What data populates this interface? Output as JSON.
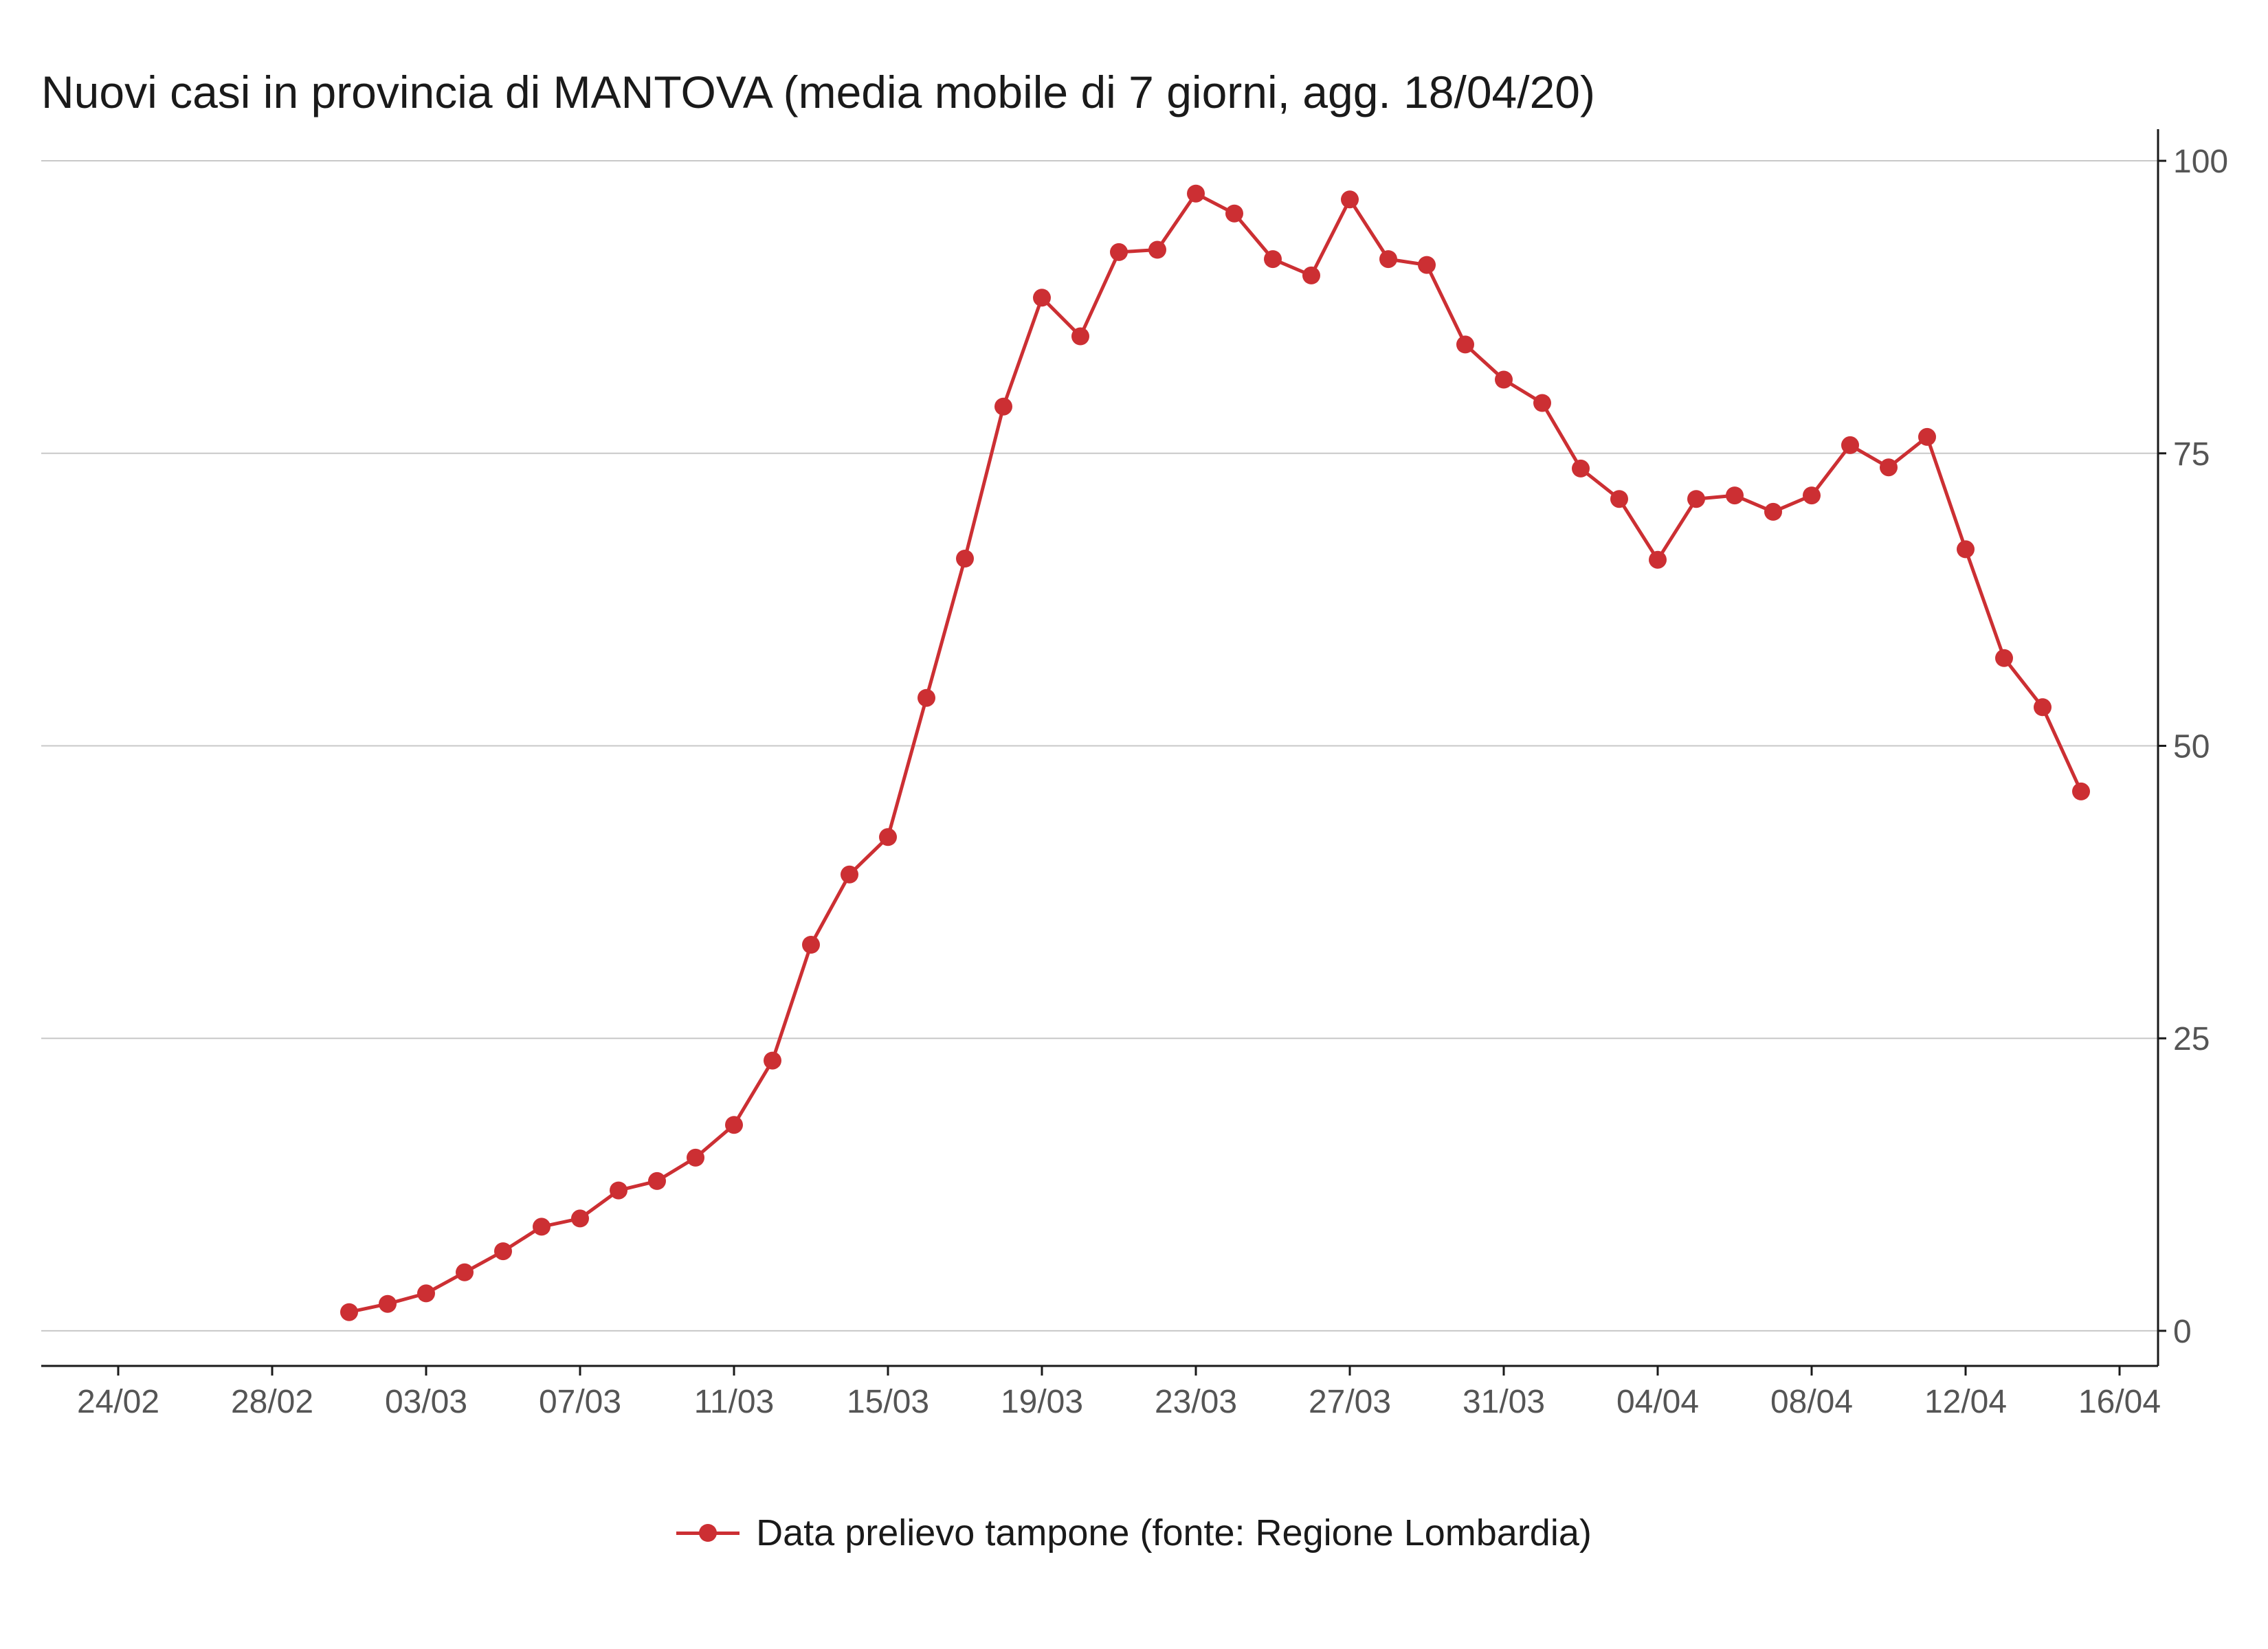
{
  "title": "Nuovi casi in provincia di MANTOVA (media mobile di 7 giorni, agg. 18/04/20)",
  "colors": {
    "series": "#cc2f33",
    "grid": "#c8c8c8",
    "axis": "#1a1a1a",
    "tick_text": "#555555"
  },
  "chart_data": {
    "type": "line",
    "title": "Nuovi casi in provincia di MANTOVA (media mobile di 7 giorni, agg. 18/04/20)",
    "xlabel": "",
    "ylabel": "",
    "x_axis": {
      "type": "date",
      "range": [
        "2020-02-22",
        "2020-04-17"
      ],
      "ticks": [
        "2020-02-24",
        "2020-02-28",
        "2020-03-03",
        "2020-03-07",
        "2020-03-11",
        "2020-03-15",
        "2020-03-19",
        "2020-03-23",
        "2020-03-27",
        "2020-03-31",
        "2020-04-04",
        "2020-04-08",
        "2020-04-12",
        "2020-04-16"
      ],
      "tick_labels": [
        "24/02",
        "28/02",
        "03/03",
        "07/03",
        "11/03",
        "15/03",
        "19/03",
        "23/03",
        "27/03",
        "31/03",
        "04/04",
        "08/04",
        "12/04",
        "16/04"
      ]
    },
    "y_axis": {
      "position": "right",
      "range": [
        -3,
        102
      ],
      "ticks": [
        0,
        25,
        50,
        75,
        100
      ]
    },
    "grid": true,
    "legend_position": "bottom",
    "series": [
      {
        "name": "Data prelievo tampone (fonte: Regione Lombardia)",
        "x": [
          "2020-03-01",
          "2020-03-02",
          "2020-03-03",
          "2020-03-04",
          "2020-03-05",
          "2020-03-06",
          "2020-03-07",
          "2020-03-08",
          "2020-03-09",
          "2020-03-10",
          "2020-03-11",
          "2020-03-12",
          "2020-03-13",
          "2020-03-14",
          "2020-03-15",
          "2020-03-16",
          "2020-03-17",
          "2020-03-18",
          "2020-03-19",
          "2020-03-20",
          "2020-03-21",
          "2020-03-22",
          "2020-03-23",
          "2020-03-24",
          "2020-03-25",
          "2020-03-26",
          "2020-03-27",
          "2020-03-28",
          "2020-03-29",
          "2020-03-30",
          "2020-03-31",
          "2020-04-01",
          "2020-04-02",
          "2020-04-03",
          "2020-04-04",
          "2020-04-05",
          "2020-04-06",
          "2020-04-07",
          "2020-04-08",
          "2020-04-09",
          "2020-04-10",
          "2020-04-11",
          "2020-04-12",
          "2020-04-13",
          "2020-04-14",
          "2020-04-15"
        ],
        "values": [
          1.6,
          2.3,
          3.2,
          5.0,
          6.8,
          8.9,
          9.6,
          12.0,
          12.8,
          14.8,
          17.6,
          23.1,
          33.0,
          39.0,
          42.2,
          54.1,
          66.0,
          79.0,
          88.3,
          85.0,
          92.2,
          92.4,
          97.2,
          95.5,
          91.6,
          90.2,
          96.7,
          91.6,
          91.1,
          84.3,
          81.3,
          79.3,
          73.7,
          71.1,
          65.9,
          71.1,
          71.4,
          70.0,
          71.4,
          75.7,
          73.8,
          76.4,
          66.8,
          57.5,
          53.3,
          46.1
        ]
      }
    ]
  }
}
